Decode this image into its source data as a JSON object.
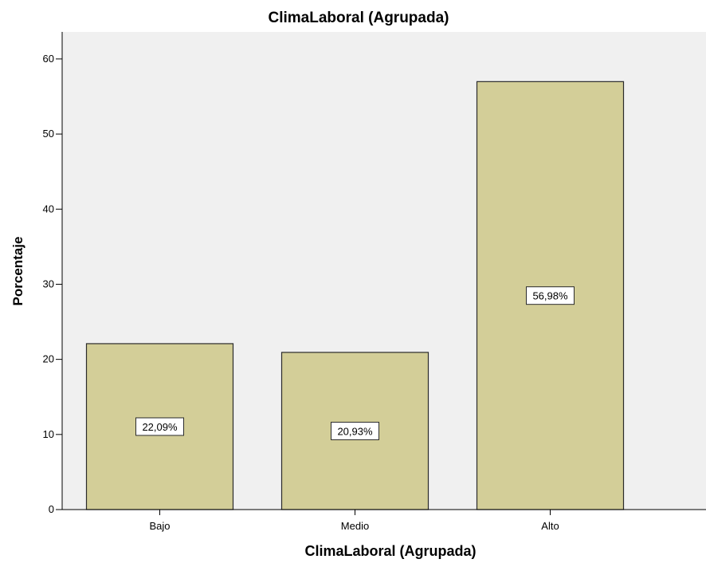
{
  "chart_data": {
    "type": "bar",
    "title": "ClimaLaboral (Agrupada)",
    "xlabel": "ClimaLaboral (Agrupada)",
    "ylabel": "Porcentaje",
    "categories": [
      "Bajo",
      "Medio",
      "Alto"
    ],
    "values": [
      22.09,
      20.93,
      56.98
    ],
    "data_labels": [
      "22,09%",
      "20,93%",
      "56,98%"
    ],
    "ylim": [
      0,
      63.6
    ],
    "yticks": [
      0,
      10,
      20,
      30,
      40,
      50,
      60
    ],
    "ytick_labels": [
      "0",
      "10",
      "20",
      "30",
      "40",
      "50",
      "60"
    ],
    "grid": false,
    "legend": "none",
    "colors": {
      "bar_fill": "#d3ce98",
      "bar_stroke": "#2b2b2b",
      "plot_bg": "#f0f0f0",
      "axis": "#000000",
      "label_bg": "#ffffff"
    }
  }
}
